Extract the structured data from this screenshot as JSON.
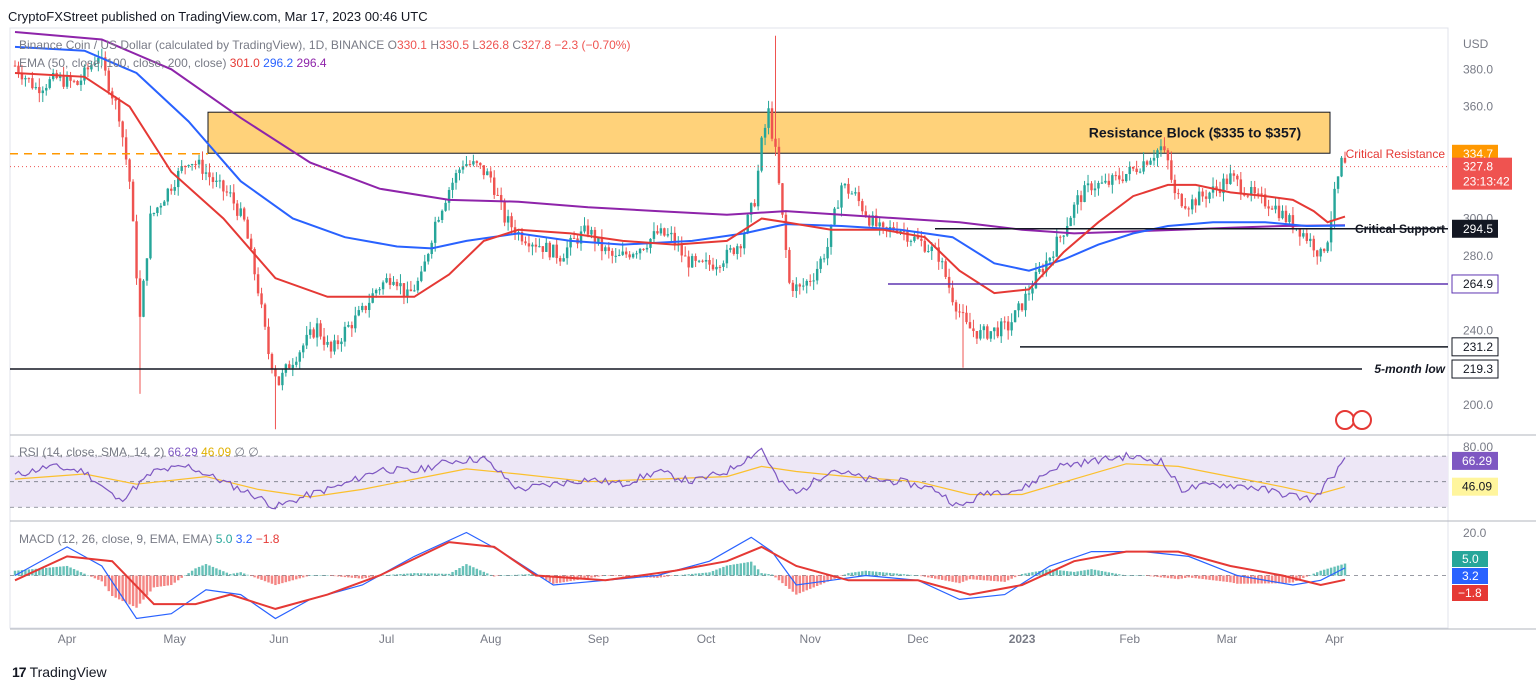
{
  "header": {
    "publisher_line": "CryptoFXStreet published on TradingView.com, Mar 17, 2023 00:46 UTC"
  },
  "footer": {
    "logo_text": "TradingView"
  },
  "chart_data": [
    {
      "type": "candlestick",
      "title": "Binance Coin / US Dollar (calculated by TradingView), 1D, BINANCE",
      "ohlc_legend": {
        "o_label": "O",
        "o": "330.1",
        "h_label": "H",
        "h": "330.5",
        "l_label": "L",
        "l": "326.8",
        "c_label": "C",
        "c": "327.8",
        "change": "−2.3 (−0.70%)"
      },
      "ema_legend": {
        "label": "EMA (50, close, 100, close, 200, close)",
        "ema50": "301.0",
        "ema100": "296.2",
        "ema200": "296.4"
      },
      "currency": "USD",
      "y_ticks": [
        "380.0",
        "360.0",
        "320.0",
        "300.0",
        "280.0",
        "240.0",
        "200.0"
      ],
      "ylim": [
        185,
        400
      ],
      "x_ticks": [
        "Apr",
        "May",
        "Jun",
        "Jul",
        "Aug",
        "Sep",
        "Oct",
        "Nov",
        "Dec",
        "2023",
        "Feb",
        "Mar",
        "Apr"
      ],
      "price_path": [
        [
          0,
          382
        ],
        [
          6,
          370
        ],
        [
          12,
          375
        ],
        [
          18,
          372
        ],
        [
          24,
          388
        ],
        [
          30,
          356
        ],
        [
          33,
          320
        ],
        [
          36,
          246
        ],
        [
          39,
          300
        ],
        [
          45,
          318
        ],
        [
          50,
          332
        ],
        [
          54,
          327
        ],
        [
          58,
          318
        ],
        [
          62,
          312
        ],
        [
          66,
          298
        ],
        [
          70,
          262
        ],
        [
          73,
          228
        ],
        [
          76,
          212
        ],
        [
          79,
          222
        ],
        [
          83,
          232
        ],
        [
          87,
          242
        ],
        [
          91,
          228
        ],
        [
          95,
          240
        ],
        [
          100,
          250
        ],
        [
          104,
          262
        ],
        [
          109,
          270
        ],
        [
          113,
          258
        ],
        [
          117,
          268
        ],
        [
          121,
          298
        ],
        [
          125,
          316
        ],
        [
          129,
          330
        ],
        [
          133,
          328
        ],
        [
          137,
          322
        ],
        [
          141,
          300
        ],
        [
          145,
          292
        ],
        [
          149,
          288
        ],
        [
          153,
          284
        ],
        [
          157,
          280
        ],
        [
          161,
          288
        ],
        [
          165,
          294
        ],
        [
          169,
          284
        ],
        [
          173,
          278
        ],
        [
          177,
          282
        ],
        [
          181,
          286
        ],
        [
          185,
          292
        ],
        [
          189,
          290
        ],
        [
          193,
          278
        ],
        [
          197,
          274
        ],
        [
          201,
          276
        ],
        [
          205,
          280
        ],
        [
          209,
          288
        ],
        [
          213,
          310
        ],
        [
          215,
          340
        ],
        [
          217,
          357
        ],
        [
          219,
          335
        ],
        [
          221,
          300
        ],
        [
          223,
          265
        ],
        [
          226,
          262
        ],
        [
          230,
          270
        ],
        [
          234,
          285
        ],
        [
          238,
          318
        ],
        [
          242,
          312
        ],
        [
          246,
          300
        ],
        [
          250,
          292
        ],
        [
          254,
          296
        ],
        [
          258,
          290
        ],
        [
          262,
          286
        ],
        [
          266,
          280
        ],
        [
          270,
          258
        ],
        [
          274,
          242
        ],
        [
          278,
          238
        ],
        [
          282,
          240
        ],
        [
          286,
          242
        ],
        [
          290,
          254
        ],
        [
          294,
          268
        ],
        [
          298,
          280
        ],
        [
          302,
          294
        ],
        [
          306,
          310
        ],
        [
          310,
          318
        ],
        [
          314,
          318
        ],
        [
          318,
          322
        ],
        [
          322,
          326
        ],
        [
          326,
          332
        ],
        [
          330,
          338
        ],
        [
          332,
          330
        ],
        [
          334,
          312
        ],
        [
          338,
          308
        ],
        [
          342,
          312
        ],
        [
          346,
          316
        ],
        [
          350,
          322
        ],
        [
          354,
          316
        ],
        [
          358,
          310
        ],
        [
          362,
          308
        ],
        [
          366,
          300
        ],
        [
          370,
          294
        ],
        [
          374,
          286
        ],
        [
          376,
          280
        ],
        [
          378,
          290
        ],
        [
          380,
          312
        ],
        [
          382,
          330
        ],
        [
          383,
          327.8
        ]
      ],
      "ema50": [
        [
          0,
          378
        ],
        [
          20,
          376
        ],
        [
          33,
          360
        ],
        [
          45,
          325
        ],
        [
          60,
          300
        ],
        [
          75,
          268
        ],
        [
          90,
          258
        ],
        [
          105,
          258
        ],
        [
          115,
          258
        ],
        [
          125,
          270
        ],
        [
          135,
          288
        ],
        [
          145,
          294
        ],
        [
          160,
          292
        ],
        [
          175,
          288
        ],
        [
          190,
          286
        ],
        [
          205,
          288
        ],
        [
          215,
          300
        ],
        [
          222,
          298
        ],
        [
          235,
          294
        ],
        [
          250,
          294
        ],
        [
          262,
          290
        ],
        [
          272,
          272
        ],
        [
          282,
          260
        ],
        [
          292,
          262
        ],
        [
          302,
          282
        ],
        [
          312,
          298
        ],
        [
          322,
          312
        ],
        [
          332,
          318
        ],
        [
          340,
          318
        ],
        [
          350,
          314
        ],
        [
          360,
          312
        ],
        [
          368,
          310
        ],
        [
          374,
          304
        ],
        [
          378,
          298
        ],
        [
          383,
          301
        ]
      ],
      "ema100": [
        [
          0,
          392
        ],
        [
          20,
          390
        ],
        [
          35,
          378
        ],
        [
          50,
          352
        ],
        [
          65,
          320
        ],
        [
          80,
          300
        ],
        [
          95,
          290
        ],
        [
          110,
          285
        ],
        [
          120,
          284
        ],
        [
          130,
          288
        ],
        [
          145,
          292
        ],
        [
          160,
          288
        ],
        [
          175,
          286
        ],
        [
          195,
          288
        ],
        [
          210,
          292
        ],
        [
          222,
          297
        ],
        [
          238,
          296
        ],
        [
          255,
          294
        ],
        [
          270,
          290
        ],
        [
          282,
          276
        ],
        [
          292,
          272
        ],
        [
          302,
          278
        ],
        [
          312,
          286
        ],
        [
          322,
          292
        ],
        [
          332,
          296
        ],
        [
          345,
          298
        ],
        [
          360,
          298
        ],
        [
          372,
          296
        ],
        [
          383,
          296.2
        ]
      ],
      "ema200": [
        [
          0,
          400
        ],
        [
          25,
          396
        ],
        [
          45,
          380
        ],
        [
          65,
          354
        ],
        [
          85,
          330
        ],
        [
          105,
          316
        ],
        [
          125,
          310
        ],
        [
          145,
          309
        ],
        [
          165,
          306
        ],
        [
          185,
          304
        ],
        [
          205,
          302
        ],
        [
          222,
          304
        ],
        [
          238,
          302
        ],
        [
          255,
          300
        ],
        [
          272,
          298
        ],
        [
          290,
          294
        ],
        [
          305,
          292
        ],
        [
          320,
          293
        ],
        [
          335,
          294
        ],
        [
          350,
          295
        ],
        [
          365,
          296
        ],
        [
          383,
          296.4
        ]
      ],
      "levels": [
        {
          "label": "Critical Resistance",
          "value": 334.7,
          "label_text": "334.7"
        },
        {
          "label": "Critical Support",
          "value": 294.5,
          "label_text": "294.5"
        },
        {
          "label": "",
          "value": 264.9,
          "label_text": "264.9"
        },
        {
          "label": "",
          "value": 231.2,
          "label_text": "231.2"
        },
        {
          "label": "5-month low",
          "value": 219.3,
          "label_text": "219.3"
        }
      ],
      "current_price": {
        "value": 327.8,
        "label_text": "327.8",
        "countdown": "23:13:42"
      },
      "resistance_block": {
        "label": "Resistance Block ($335 to $357)",
        "low": 335,
        "high": 357
      },
      "colors": {
        "bull": "#26a69a",
        "bear": "#ef5350",
        "ema50": "#e53935",
        "ema100": "#2962ff",
        "ema200": "#8e24aa",
        "block": "#ffd27a",
        "resistance_orange": "#ff9800"
      }
    },
    {
      "type": "line",
      "title": "RSI (14, close, SMA, 14, 2)",
      "legend": {
        "label": "RSI (14, close, SMA, 14, 2)",
        "rsi": "66.29",
        "sma": "46.09",
        "extra": "∅ ∅"
      },
      "y_ticks": [
        "80.00"
      ],
      "ylim": [
        20,
        85
      ],
      "band": [
        30,
        70
      ],
      "last_values": {
        "rsi": "66.29",
        "sma": "46.09"
      },
      "rsi": [
        [
          0,
          55
        ],
        [
          10,
          62
        ],
        [
          20,
          58
        ],
        [
          30,
          35
        ],
        [
          40,
          58
        ],
        [
          50,
          62
        ],
        [
          60,
          50
        ],
        [
          70,
          38
        ],
        [
          75,
          30
        ],
        [
          85,
          40
        ],
        [
          95,
          48
        ],
        [
          105,
          60
        ],
        [
          115,
          58
        ],
        [
          125,
          66
        ],
        [
          135,
          68
        ],
        [
          145,
          44
        ],
        [
          155,
          48
        ],
        [
          165,
          52
        ],
        [
          175,
          48
        ],
        [
          185,
          58
        ],
        [
          195,
          50
        ],
        [
          205,
          58
        ],
        [
          215,
          76
        ],
        [
          220,
          50
        ],
        [
          225,
          40
        ],
        [
          235,
          60
        ],
        [
          245,
          52
        ],
        [
          255,
          50
        ],
        [
          265,
          44
        ],
        [
          272,
          30
        ],
        [
          280,
          42
        ],
        [
          290,
          44
        ],
        [
          300,
          62
        ],
        [
          310,
          66
        ],
        [
          320,
          70
        ],
        [
          330,
          66
        ],
        [
          336,
          44
        ],
        [
          346,
          48
        ],
        [
          356,
          46
        ],
        [
          366,
          40
        ],
        [
          374,
          36
        ],
        [
          378,
          50
        ],
        [
          383,
          66.29
        ]
      ],
      "sma": [
        [
          0,
          52
        ],
        [
          20,
          56
        ],
        [
          35,
          48
        ],
        [
          55,
          54
        ],
        [
          70,
          44
        ],
        [
          85,
          38
        ],
        [
          100,
          44
        ],
        [
          115,
          52
        ],
        [
          130,
          60
        ],
        [
          145,
          56
        ],
        [
          165,
          50
        ],
        [
          185,
          52
        ],
        [
          205,
          54
        ],
        [
          215,
          62
        ],
        [
          225,
          58
        ],
        [
          240,
          54
        ],
        [
          260,
          50
        ],
        [
          275,
          40
        ],
        [
          290,
          40
        ],
        [
          305,
          52
        ],
        [
          320,
          64
        ],
        [
          335,
          62
        ],
        [
          350,
          54
        ],
        [
          365,
          46
        ],
        [
          375,
          40
        ],
        [
          383,
          46.09
        ]
      ],
      "colors": {
        "rsi": "#7e57c2",
        "sma": "#fbc02d",
        "band": "#ede7f6"
      }
    },
    {
      "type": "bar",
      "title": "MACD (12, 26, close, 9, EMA, EMA)",
      "legend": {
        "label": "MACD (12, 26, close, 9, EMA, EMA)",
        "hist": "5.0",
        "macd": "3.2",
        "signal": "−1.8"
      },
      "y_ticks": [
        "20.0"
      ],
      "ylim": [
        -22,
        22
      ],
      "last_values": {
        "hist": "5.0",
        "macd": "3.2",
        "signal": "−1.8"
      },
      "macd": [
        [
          0,
          0
        ],
        [
          15,
          12
        ],
        [
          25,
          4
        ],
        [
          35,
          -18
        ],
        [
          45,
          -16
        ],
        [
          55,
          -6
        ],
        [
          65,
          -8
        ],
        [
          75,
          -18
        ],
        [
          85,
          -10
        ],
        [
          100,
          -4
        ],
        [
          115,
          8
        ],
        [
          130,
          18
        ],
        [
          140,
          10
        ],
        [
          155,
          -4
        ],
        [
          170,
          -2
        ],
        [
          185,
          0
        ],
        [
          200,
          6
        ],
        [
          212,
          16
        ],
        [
          218,
          10
        ],
        [
          225,
          -4
        ],
        [
          235,
          -2
        ],
        [
          245,
          0
        ],
        [
          260,
          -2
        ],
        [
          272,
          -10
        ],
        [
          285,
          -8
        ],
        [
          298,
          4
        ],
        [
          310,
          10
        ],
        [
          325,
          10
        ],
        [
          338,
          8
        ],
        [
          352,
          0
        ],
        [
          368,
          -4
        ],
        [
          376,
          -2
        ],
        [
          383,
          3.2
        ]
      ],
      "signal": [
        [
          0,
          -2
        ],
        [
          15,
          8
        ],
        [
          28,
          6
        ],
        [
          40,
          -12
        ],
        [
          52,
          -12
        ],
        [
          62,
          -8
        ],
        [
          75,
          -14
        ],
        [
          90,
          -8
        ],
        [
          105,
          0
        ],
        [
          125,
          14
        ],
        [
          138,
          12
        ],
        [
          150,
          0
        ],
        [
          170,
          -2
        ],
        [
          190,
          2
        ],
        [
          205,
          6
        ],
        [
          215,
          12
        ],
        [
          225,
          4
        ],
        [
          240,
          -2
        ],
        [
          260,
          -2
        ],
        [
          275,
          -8
        ],
        [
          290,
          -4
        ],
        [
          305,
          6
        ],
        [
          320,
          10
        ],
        [
          335,
          10
        ],
        [
          350,
          4
        ],
        [
          365,
          0
        ],
        [
          376,
          -4
        ],
        [
          383,
          -1.8
        ]
      ],
      "colors": {
        "macd": "#2962ff",
        "signal": "#e53935",
        "hist_up": "#26a69a",
        "hist_down": "#ef5350"
      }
    }
  ]
}
